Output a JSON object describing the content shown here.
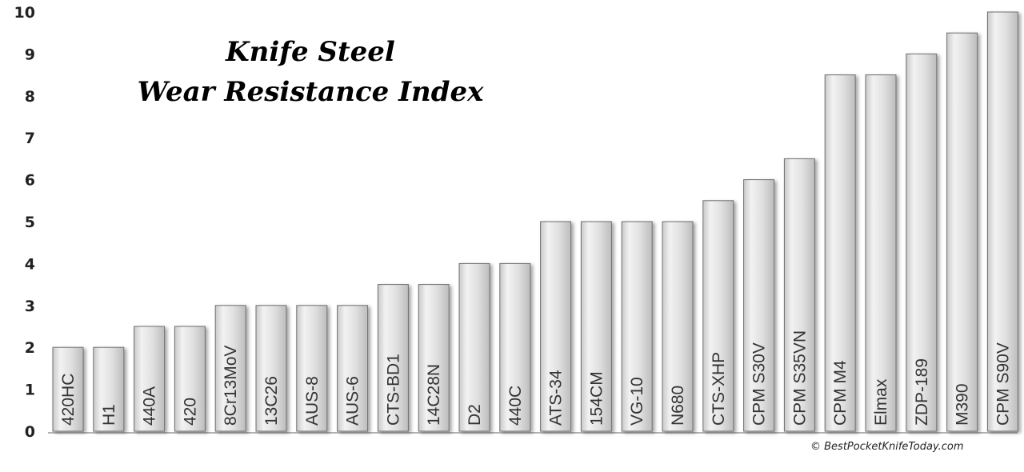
{
  "chart_data": {
    "type": "bar",
    "title_line1": "Knife Steel",
    "title_line2": "Wear Resistance Index",
    "xlabel": "",
    "ylabel": "",
    "ylim": [
      0,
      10
    ],
    "yticks": [
      "0",
      "1",
      "2",
      "3",
      "4",
      "5",
      "6",
      "7",
      "8",
      "9",
      "10"
    ],
    "grid": false,
    "categories": [
      "420HC",
      "H1",
      "440A",
      "420",
      "8Cr13MoV",
      "13C26",
      "AUS-8",
      "AUS-6",
      "CTS-BD1",
      "14C28N",
      "D2",
      "440C",
      "ATS-34",
      "154CM",
      "VG-10",
      "N680",
      "CTS-XHP",
      "CPM S30V",
      "CPM S35VN",
      "CPM M4",
      "Elmax",
      "ZDP-189",
      "M390",
      "CPM S90V"
    ],
    "values": [
      2,
      2,
      2.5,
      2.5,
      3,
      3,
      3,
      3,
      3.5,
      3.5,
      4,
      4,
      5,
      5,
      5,
      5,
      5.5,
      6,
      6.5,
      8.5,
      8.5,
      9,
      9.5,
      10
    ],
    "credit": "© BestPocketKnifeToday.com",
    "bar_color": "#dcdcdc"
  }
}
